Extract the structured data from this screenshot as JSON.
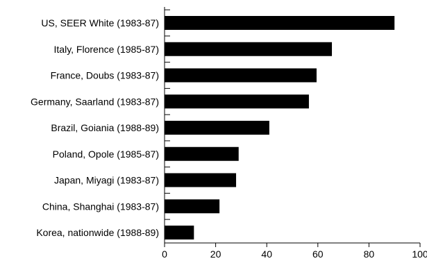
{
  "chart_data": {
    "type": "bar",
    "orientation": "horizontal",
    "categories": [
      "US, SEER White (1983-87)",
      "Italy, Florence (1985-87)",
      "France, Doubs (1983-87)",
      "Germany, Saarland (1983-87)",
      "Brazil, Goiania (1988-89)",
      "Poland, Opole (1985-87)",
      "Japan, Miyagi (1983-87)",
      "China, Shanghai (1983-87)",
      "Korea, nationwide (1988-89)"
    ],
    "values": [
      90,
      65.5,
      59.5,
      56.5,
      41,
      29,
      28,
      21.5,
      11.5
    ],
    "xlim": [
      0,
      100
    ],
    "xticks": [
      0,
      20,
      40,
      60,
      80,
      100
    ],
    "grid": false,
    "colors": {
      "bar": "#000000",
      "axis": "#000000"
    }
  }
}
